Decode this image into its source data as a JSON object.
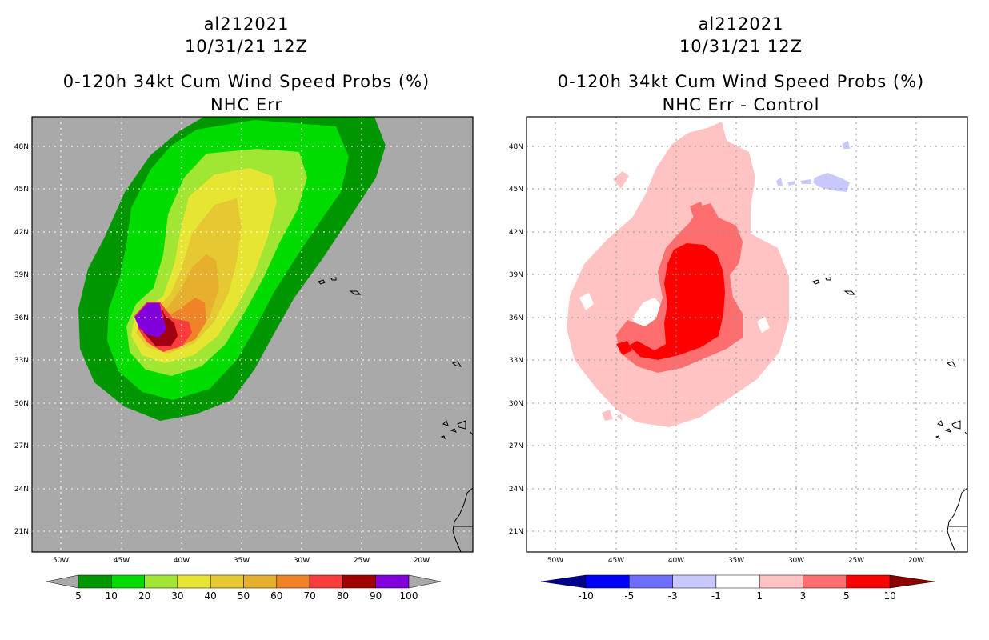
{
  "left_panel": {
    "storm_id": "al212021",
    "datetime": "10/31/21 12Z",
    "title": "0-120h 34kt Cum Wind Speed Probs (%)",
    "subtitle": "NHC Err",
    "lat_labels": [
      "48N",
      "45N",
      "42N",
      "39N",
      "36N",
      "33N",
      "30N",
      "27N",
      "24N",
      "21N"
    ],
    "lon_labels": [
      "50W",
      "45W",
      "40W",
      "35W",
      "30W",
      "25W",
      "20W"
    ],
    "background_color": "#a9a9a9",
    "colorbar": {
      "labels": [
        "5",
        "10",
        "20",
        "30",
        "40",
        "50",
        "60",
        "70",
        "80",
        "90",
        "100"
      ],
      "colors": [
        "#009600",
        "#00dc00",
        "#a0e632",
        "#e6e632",
        "#e6c832",
        "#e6af2d",
        "#f08228",
        "#fa3c3c",
        "#a00000",
        "#8200dc"
      ]
    }
  },
  "right_panel": {
    "storm_id": "al212021",
    "datetime": "10/31/21 12Z",
    "title": "0-120h 34kt Cum Wind Speed Probs (%)",
    "subtitle": "NHC Err - Control",
    "lat_labels": [
      "48N",
      "45N",
      "42N",
      "39N",
      "36N",
      "33N",
      "30N",
      "27N",
      "24N",
      "21N"
    ],
    "lon_labels": [
      "50W",
      "45W",
      "40W",
      "35W",
      "30W",
      "25W",
      "20W"
    ],
    "background_color": "#ffffff",
    "colorbar": {
      "labels": [
        "-10",
        "-5",
        "-3",
        "-1",
        "1",
        "3",
        "5",
        "10"
      ],
      "colors": [
        "#0000ff",
        "#6e6eff",
        "#c8c8ff",
        "#ffffff",
        "#ffc3c3",
        "#ff6e6e",
        "#ff0000"
      ],
      "end_colors": [
        "#00008c",
        "#8c0000"
      ]
    }
  }
}
